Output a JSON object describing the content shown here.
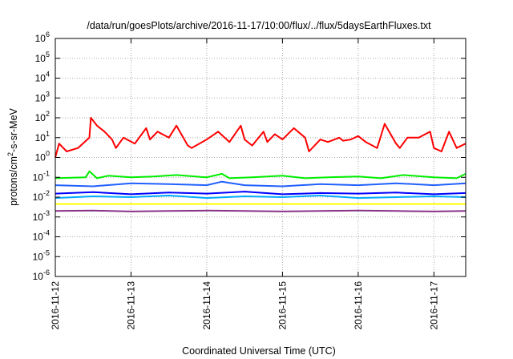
{
  "chart_data": {
    "type": "line",
    "title": "/data/run/goesPlots/archive/2016-11-17/10:00/flux/../flux/5daysEarthFluxes.txt",
    "xlabel": "Coordinated Universal Time (UTC)",
    "ylabel": {
      "pre": "protons/cm",
      "sup": "2",
      "post": "-s-sr-MeV"
    },
    "yscale": "log",
    "ylim": [
      -6,
      6
    ],
    "yticks": [
      {
        "base": "10",
        "exp": "-6",
        "v": -6
      },
      {
        "base": "10",
        "exp": "-5",
        "v": -5
      },
      {
        "base": "10",
        "exp": "-4",
        "v": -4
      },
      {
        "base": "10",
        "exp": "-3",
        "v": -3
      },
      {
        "base": "10",
        "exp": "-2",
        "v": -2
      },
      {
        "base": "10",
        "exp": "-1",
        "v": -1
      },
      {
        "base": "10",
        "exp": "0",
        "v": 0
      },
      {
        "base": "10",
        "exp": "1",
        "v": 1
      },
      {
        "base": "10",
        "exp": "2",
        "v": 2
      },
      {
        "base": "10",
        "exp": "3",
        "v": 3
      },
      {
        "base": "10",
        "exp": "4",
        "v": 4
      },
      {
        "base": "10",
        "exp": "5",
        "v": 5
      },
      {
        "base": "10",
        "exp": "6",
        "v": 6
      }
    ],
    "xlim": [
      "2016-11-12",
      "2016-11-17 10:00"
    ],
    "xticks": [
      "2016-11-12",
      "2016-11-13",
      "2016-11-14",
      "2016-11-15",
      "2016-11-16",
      "2016-11-17"
    ],
    "grid": true,
    "series": [
      {
        "color": "#ff0000",
        "x": [
          0,
          0.05,
          0.15,
          0.3,
          0.45,
          0.47,
          0.55,
          0.65,
          0.75,
          0.8,
          0.9,
          1.05,
          1.2,
          1.25,
          1.35,
          1.5,
          1.6,
          1.75,
          1.8,
          2.0,
          2.15,
          2.3,
          2.45,
          2.5,
          2.6,
          2.75,
          2.8,
          2.9,
          3.0,
          3.15,
          3.3,
          3.35,
          3.5,
          3.6,
          3.75,
          3.8,
          3.9,
          4.0,
          4.1,
          4.25,
          4.35,
          4.5,
          4.55,
          4.65,
          4.8,
          4.95,
          5.0,
          5.1,
          5.2,
          5.3,
          5.42
        ],
        "y": [
          1,
          5,
          2,
          3,
          10,
          100,
          40,
          20,
          8,
          3,
          10,
          5,
          30,
          8,
          20,
          10,
          40,
          4,
          3,
          8,
          20,
          6,
          40,
          8,
          4,
          20,
          6,
          15,
          8,
          30,
          10,
          2,
          8,
          6,
          10,
          7,
          8,
          12,
          6,
          3,
          50,
          5,
          3,
          10,
          10,
          20,
          3,
          2,
          20,
          3,
          5
        ]
      },
      {
        "color": "#00ee00",
        "x": [
          0,
          0.4,
          0.45,
          0.55,
          0.7,
          1.0,
          1.3,
          1.6,
          2.0,
          2.2,
          2.3,
          2.6,
          3.0,
          3.3,
          3.6,
          4.0,
          4.3,
          4.6,
          5.0,
          5.3,
          5.42
        ],
        "y": [
          0.09,
          0.1,
          0.2,
          0.09,
          0.12,
          0.1,
          0.11,
          0.13,
          0.1,
          0.15,
          0.09,
          0.1,
          0.12,
          0.09,
          0.1,
          0.11,
          0.09,
          0.13,
          0.1,
          0.09,
          0.15
        ]
      },
      {
        "color": "#2060ff",
        "x": [
          0,
          0.5,
          1.0,
          1.5,
          2.0,
          2.2,
          2.5,
          3.0,
          3.5,
          4.0,
          4.5,
          5.0,
          5.42
        ],
        "y": [
          0.04,
          0.035,
          0.05,
          0.045,
          0.04,
          0.06,
          0.04,
          0.035,
          0.045,
          0.04,
          0.05,
          0.04,
          0.05
        ]
      },
      {
        "color": "#0000ff",
        "x": [
          0,
          0.5,
          1.0,
          1.5,
          2.0,
          2.5,
          3.0,
          3.5,
          4.0,
          4.5,
          5.0,
          5.42
        ],
        "y": [
          0.015,
          0.018,
          0.014,
          0.017,
          0.015,
          0.019,
          0.014,
          0.016,
          0.015,
          0.017,
          0.014,
          0.016
        ]
      },
      {
        "color": "#00aaff",
        "x": [
          0,
          0.5,
          1.0,
          1.5,
          2.0,
          2.5,
          3.0,
          3.5,
          4.0,
          4.5,
          5.0,
          5.42
        ],
        "y": [
          0.009,
          0.011,
          0.01,
          0.012,
          0.009,
          0.011,
          0.01,
          0.012,
          0.009,
          0.01,
          0.011,
          0.01
        ]
      },
      {
        "color": "#ffff00",
        "x": [
          0,
          1.0,
          2.0,
          3.0,
          4.0,
          5.0,
          5.42
        ],
        "y": [
          0.0045,
          0.0045,
          0.0045,
          0.0045,
          0.0045,
          0.0045,
          0.0045
        ]
      },
      {
        "color": "#883388",
        "x": [
          0,
          0.5,
          1.0,
          1.5,
          2.0,
          2.5,
          3.0,
          3.5,
          4.0,
          4.5,
          5.0,
          5.42
        ],
        "y": [
          0.002,
          0.0021,
          0.0019,
          0.002,
          0.0021,
          0.002,
          0.0019,
          0.002,
          0.0021,
          0.002,
          0.0019,
          0.002
        ]
      }
    ]
  }
}
